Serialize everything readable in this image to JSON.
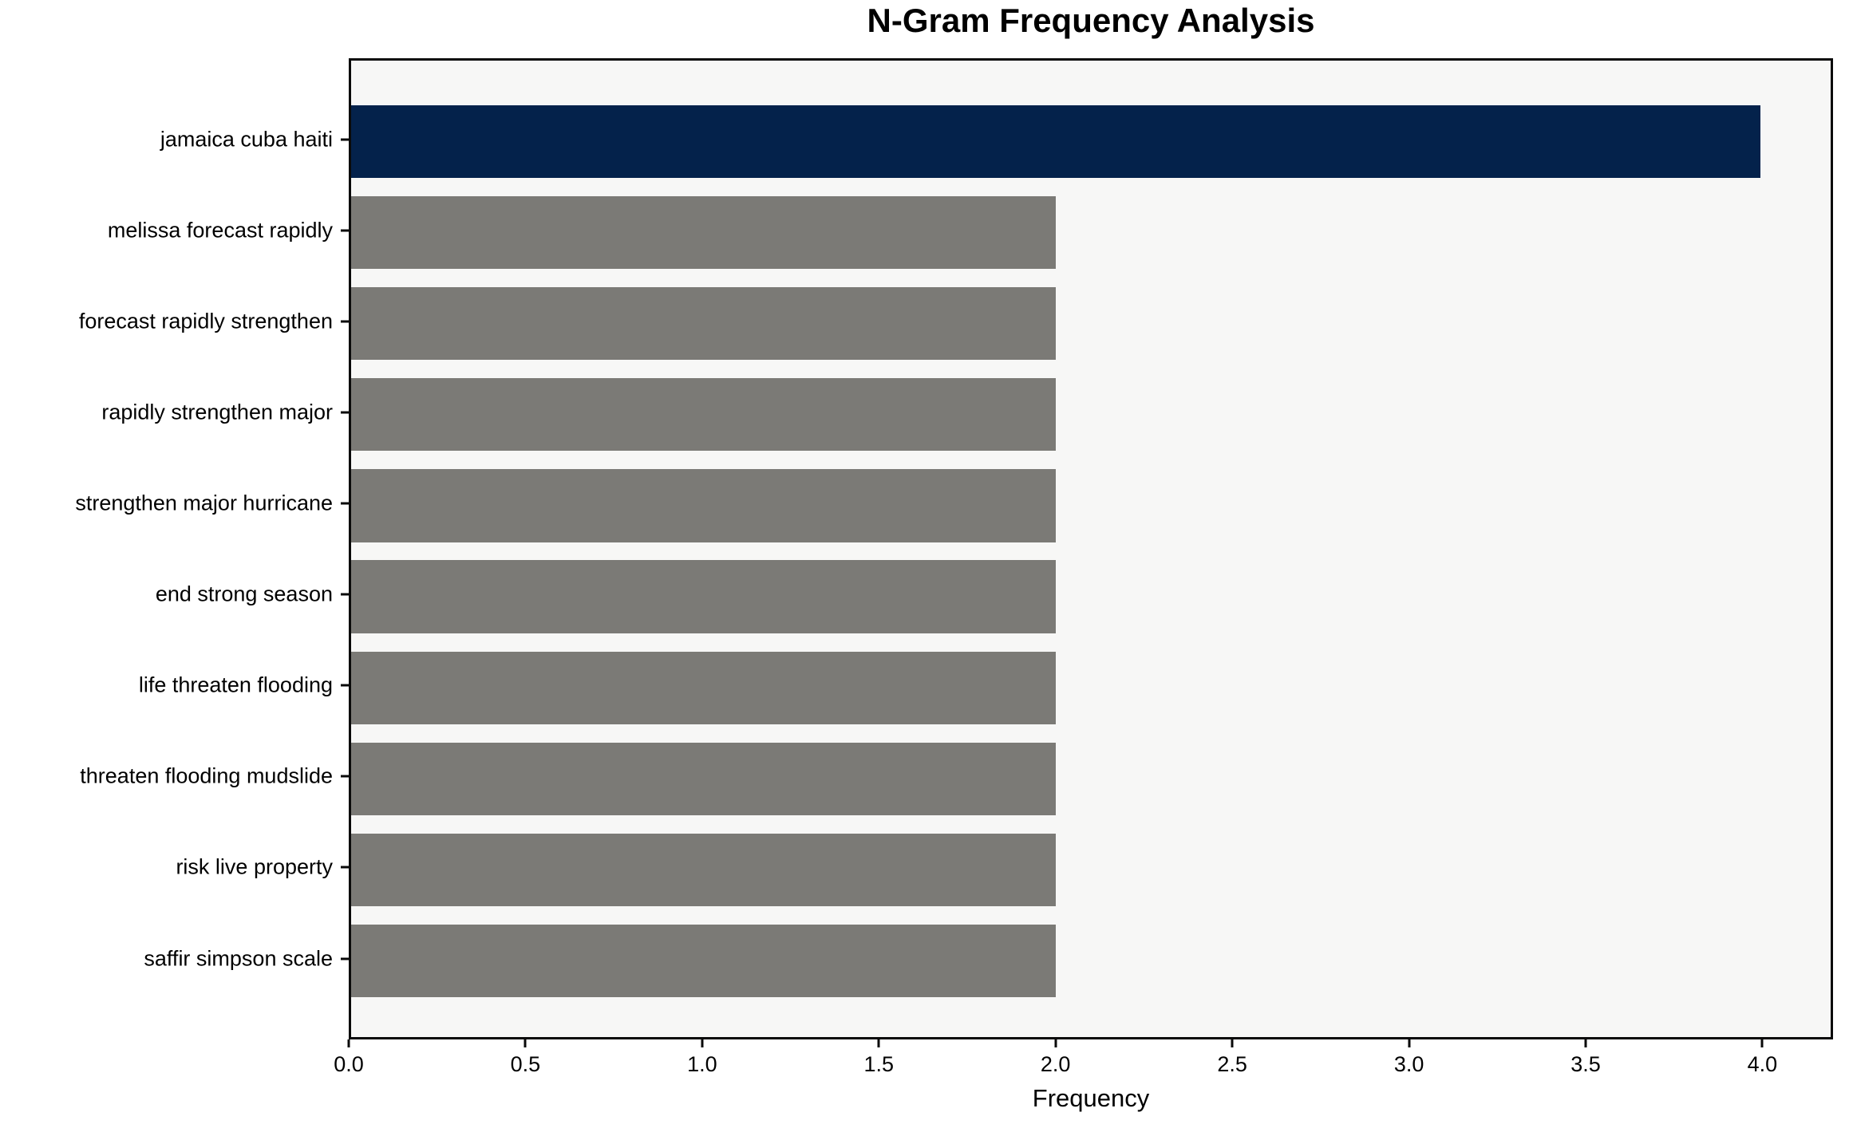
{
  "chart_data": {
    "type": "bar",
    "orientation": "horizontal",
    "title": "N-Gram Frequency Analysis",
    "xlabel": "Frequency",
    "ylabel": "",
    "categories": [
      "jamaica cuba haiti",
      "melissa forecast rapidly",
      "forecast rapidly strengthen",
      "rapidly strengthen major",
      "strengthen major hurricane",
      "end strong season",
      "life threaten flooding",
      "threaten flooding mudslide",
      "risk live property",
      "saffir simpson scale"
    ],
    "values": [
      4,
      2,
      2,
      2,
      2,
      2,
      2,
      2,
      2,
      2
    ],
    "bar_colors": [
      "#04224B",
      "#7B7A76",
      "#7B7A76",
      "#7B7A76",
      "#7B7A76",
      "#7B7A76",
      "#7B7A76",
      "#7B7A76",
      "#7B7A76",
      "#7B7A76"
    ],
    "xticks": [
      "0.0",
      "0.5",
      "1.0",
      "1.5",
      "2.0",
      "2.5",
      "3.0",
      "3.5",
      "4.0"
    ],
    "xlim": [
      0,
      4.2
    ],
    "grid": false,
    "legend": null,
    "colors": {
      "highlight_bar": "#04224B",
      "default_bar": "#7B7A76",
      "plot_background": "#F7F7F6",
      "figure_background": "#FFFFFF",
      "axis_frame": "#0A0A0A"
    }
  }
}
